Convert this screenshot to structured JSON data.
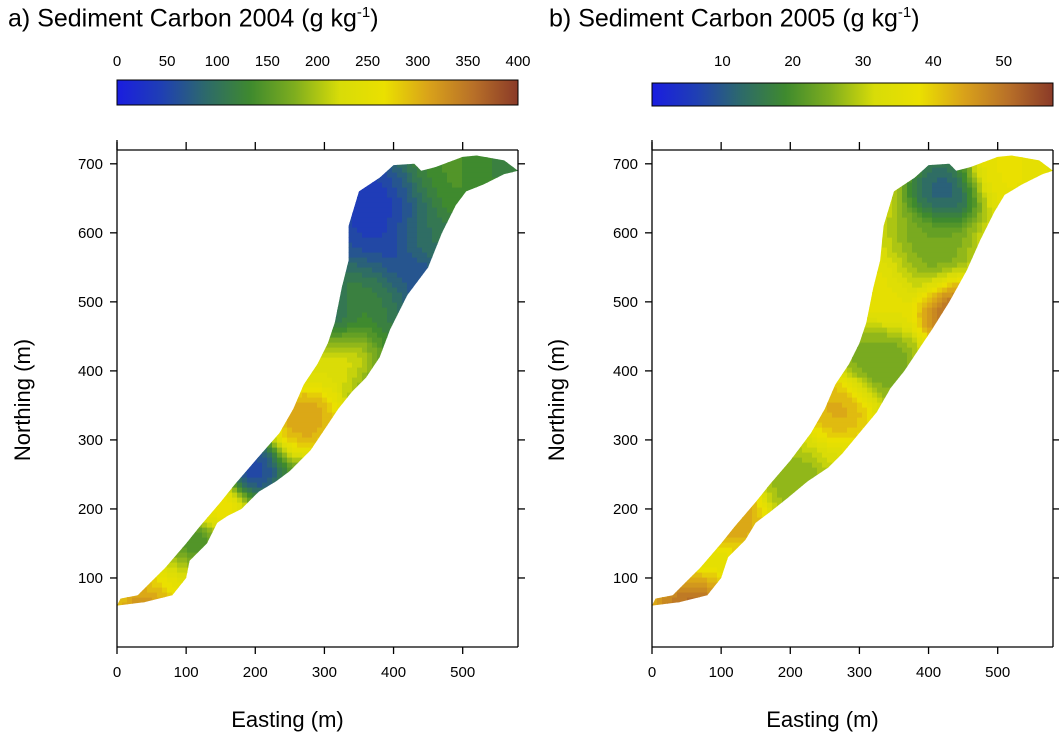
{
  "colors": {
    "colormap": [
      "#1a1de0",
      "#1f3fb4",
      "#2d6a6a",
      "#3f8a2e",
      "#7fae1e",
      "#d8dc08",
      "#eae000",
      "#d9a21a",
      "#b87028",
      "#8a3a28"
    ]
  },
  "chart_data": [
    {
      "type": "heatmap",
      "panel_label": "a)",
      "title": "Sediment Carbon 2004",
      "title_unit": "(g kg",
      "title_unit_sup": "-1",
      "title_unit_close": ")",
      "colorbar": {
        "min": 0,
        "max": 400,
        "ticks": [
          0,
          50,
          100,
          150,
          200,
          250,
          300,
          350,
          400
        ]
      },
      "xlabel": "Easting (m)",
      "ylabel": "Northing (m)",
      "xlim": [
        0,
        580
      ],
      "ylim": [
        0,
        720
      ],
      "xticks": [
        0,
        100,
        200,
        300,
        400,
        500
      ],
      "yticks": [
        100,
        200,
        300,
        400,
        500,
        600,
        700
      ],
      "grid": false,
      "outline": [
        [
          0,
          60
        ],
        [
          40,
          65
        ],
        [
          80,
          75
        ],
        [
          100,
          100
        ],
        [
          105,
          125
        ],
        [
          130,
          150
        ],
        [
          145,
          180
        ],
        [
          160,
          190
        ],
        [
          180,
          200
        ],
        [
          205,
          225
        ],
        [
          230,
          240
        ],
        [
          250,
          255
        ],
        [
          265,
          270
        ],
        [
          280,
          285
        ],
        [
          300,
          315
        ],
        [
          320,
          345
        ],
        [
          340,
          370
        ],
        [
          360,
          390
        ],
        [
          380,
          420
        ],
        [
          395,
          460
        ],
        [
          420,
          510
        ],
        [
          450,
          550
        ],
        [
          470,
          600
        ],
        [
          490,
          640
        ],
        [
          505,
          660
        ],
        [
          530,
          670
        ],
        [
          560,
          685
        ],
        [
          580,
          690
        ],
        [
          560,
          705
        ],
        [
          520,
          712
        ],
        [
          500,
          710
        ],
        [
          460,
          695
        ],
        [
          440,
          690
        ],
        [
          430,
          700
        ],
        [
          400,
          698
        ],
        [
          380,
          680
        ],
        [
          350,
          660
        ],
        [
          335,
          610
        ],
        [
          335,
          560
        ],
        [
          325,
          520
        ],
        [
          315,
          470
        ],
        [
          305,
          440
        ],
        [
          290,
          410
        ],
        [
          270,
          380
        ],
        [
          255,
          345
        ],
        [
          235,
          310
        ],
        [
          200,
          270
        ],
        [
          170,
          235
        ],
        [
          150,
          210
        ],
        [
          120,
          175
        ],
        [
          100,
          150
        ],
        [
          70,
          115
        ],
        [
          50,
          95
        ],
        [
          30,
          75
        ],
        [
          5,
          70
        ]
      ],
      "field": [
        {
          "x": 45,
          "y": 50,
          "v": 360,
          "r": 45
        },
        {
          "x": 100,
          "y": 90,
          "v": 250,
          "r": 50
        },
        {
          "x": 110,
          "y": 145,
          "v": 110,
          "r": 35
        },
        {
          "x": 140,
          "y": 200,
          "v": 300,
          "r": 35
        },
        {
          "x": 185,
          "y": 255,
          "v": 40,
          "r": 30
        },
        {
          "x": 270,
          "y": 330,
          "v": 340,
          "r": 40
        },
        {
          "x": 300,
          "y": 420,
          "v": 250,
          "r": 45
        },
        {
          "x": 300,
          "y": 470,
          "v": 60,
          "r": 35
        },
        {
          "x": 365,
          "y": 510,
          "v": 150,
          "r": 40
        },
        {
          "x": 400,
          "y": 550,
          "v": 40,
          "r": 60
        },
        {
          "x": 380,
          "y": 640,
          "v": 20,
          "r": 60
        },
        {
          "x": 440,
          "y": 590,
          "v": 120,
          "r": 35
        },
        {
          "x": 470,
          "y": 680,
          "v": 150,
          "r": 60
        },
        {
          "x": 540,
          "y": 690,
          "v": 120,
          "r": 40
        }
      ],
      "base_value": 130
    },
    {
      "type": "heatmap",
      "panel_label": "b)",
      "title": "Sediment Carbon 2005",
      "title_unit": "(g kg",
      "title_unit_sup": "-1",
      "title_unit_close": ")",
      "colorbar": {
        "min": 0,
        "max": 57,
        "ticks": [
          10,
          20,
          30,
          40,
          50
        ]
      },
      "xlabel": "Easting (m)",
      "ylabel": "Northing (m)",
      "xlim": [
        0,
        580
      ],
      "ylim": [
        0,
        720
      ],
      "xticks": [
        0,
        100,
        200,
        300,
        400,
        500
      ],
      "yticks": [
        100,
        200,
        300,
        400,
        500,
        600,
        700
      ],
      "grid": false,
      "outline": [
        [
          0,
          60
        ],
        [
          40,
          65
        ],
        [
          80,
          75
        ],
        [
          100,
          100
        ],
        [
          110,
          130
        ],
        [
          135,
          155
        ],
        [
          150,
          180
        ],
        [
          170,
          195
        ],
        [
          195,
          215
        ],
        [
          225,
          240
        ],
        [
          255,
          260
        ],
        [
          275,
          280
        ],
        [
          300,
          310
        ],
        [
          325,
          340
        ],
        [
          345,
          375
        ],
        [
          365,
          400
        ],
        [
          385,
          430
        ],
        [
          405,
          460
        ],
        [
          430,
          500
        ],
        [
          455,
          545
        ],
        [
          475,
          590
        ],
        [
          495,
          630
        ],
        [
          510,
          655
        ],
        [
          535,
          670
        ],
        [
          565,
          685
        ],
        [
          580,
          690
        ],
        [
          560,
          705
        ],
        [
          520,
          712
        ],
        [
          500,
          710
        ],
        [
          460,
          695
        ],
        [
          440,
          690
        ],
        [
          430,
          700
        ],
        [
          400,
          698
        ],
        [
          380,
          680
        ],
        [
          350,
          660
        ],
        [
          335,
          610
        ],
        [
          330,
          560
        ],
        [
          320,
          520
        ],
        [
          310,
          470
        ],
        [
          300,
          440
        ],
        [
          285,
          410
        ],
        [
          265,
          380
        ],
        [
          250,
          345
        ],
        [
          230,
          310
        ],
        [
          200,
          270
        ],
        [
          170,
          235
        ],
        [
          150,
          210
        ],
        [
          120,
          175
        ],
        [
          100,
          150
        ],
        [
          70,
          115
        ],
        [
          50,
          95
        ],
        [
          30,
          75
        ],
        [
          5,
          70
        ]
      ],
      "field": [
        {
          "x": 55,
          "y": 30,
          "v": 55,
          "r": 45
        },
        {
          "x": 120,
          "y": 190,
          "v": 46,
          "r": 35
        },
        {
          "x": 200,
          "y": 230,
          "v": 25,
          "r": 40
        },
        {
          "x": 270,
          "y": 350,
          "v": 45,
          "r": 35
        },
        {
          "x": 320,
          "y": 410,
          "v": 22,
          "r": 45
        },
        {
          "x": 330,
          "y": 520,
          "v": 38,
          "r": 50
        },
        {
          "x": 425,
          "y": 490,
          "v": 55,
          "r": 35
        },
        {
          "x": 390,
          "y": 560,
          "v": 22,
          "r": 50
        },
        {
          "x": 420,
          "y": 660,
          "v": 8,
          "r": 40
        },
        {
          "x": 500,
          "y": 690,
          "v": 38,
          "r": 40
        }
      ],
      "base_value": 34
    }
  ]
}
